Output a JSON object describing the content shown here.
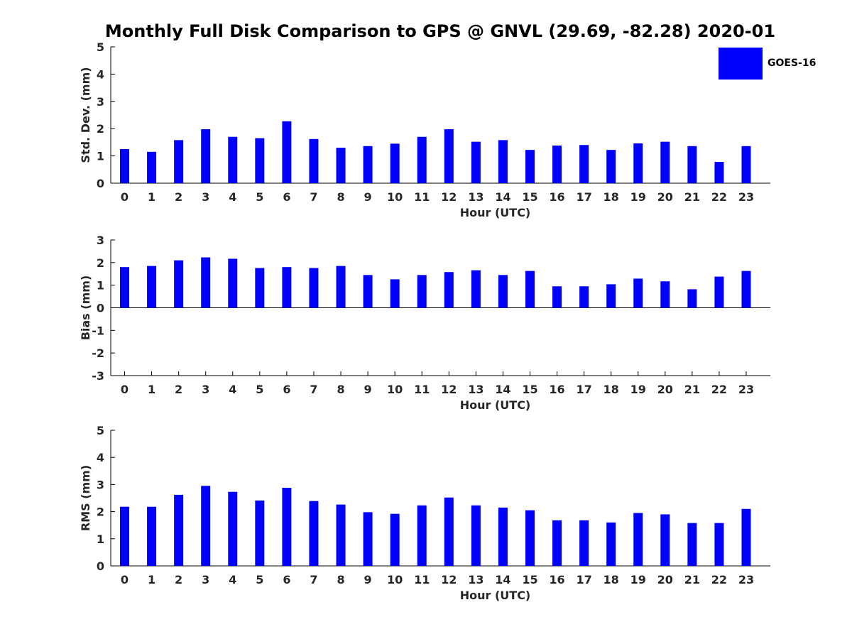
{
  "figure": {
    "title": "Monthly Full Disk Comparison to GPS @ GNVL (29.69, -82.28) 2020-01",
    "legend": [
      {
        "label": "GOES-16",
        "color": "#0000ff"
      }
    ],
    "bar_color": "#0000ff"
  },
  "chart_data": [
    {
      "type": "bar",
      "xlabel": "Hour (UTC)",
      "ylabel": "Std. Dev. (mm)",
      "ylim": [
        0,
        5
      ],
      "yticks": [
        0,
        1,
        2,
        3,
        4,
        5
      ],
      "categories": [
        "0",
        "1",
        "2",
        "3",
        "4",
        "5",
        "6",
        "7",
        "8",
        "9",
        "10",
        "11",
        "12",
        "13",
        "14",
        "15",
        "16",
        "17",
        "18",
        "19",
        "20",
        "21",
        "22",
        "23"
      ],
      "series": [
        {
          "name": "GOES-16",
          "values": [
            1.25,
            1.15,
            1.58,
            1.98,
            1.7,
            1.65,
            2.27,
            1.62,
            1.3,
            1.36,
            1.45,
            1.7,
            1.98,
            1.52,
            1.58,
            1.22,
            1.38,
            1.4,
            1.22,
            1.46,
            1.52,
            1.36,
            0.78,
            1.36
          ]
        }
      ],
      "grid": false,
      "legend_position": "top-right"
    },
    {
      "type": "bar",
      "xlabel": "Hour (UTC)",
      "ylabel": "Bias (mm)",
      "ylim": [
        -3,
        3
      ],
      "yticks": [
        -3,
        -2,
        -1,
        0,
        1,
        2,
        3
      ],
      "categories": [
        "0",
        "1",
        "2",
        "3",
        "4",
        "5",
        "6",
        "7",
        "8",
        "9",
        "10",
        "11",
        "12",
        "13",
        "14",
        "15",
        "16",
        "17",
        "18",
        "19",
        "20",
        "21",
        "22",
        "23"
      ],
      "series": [
        {
          "name": "GOES-16",
          "values": [
            1.8,
            1.85,
            2.1,
            2.23,
            2.17,
            1.76,
            1.8,
            1.76,
            1.85,
            1.45,
            1.26,
            1.45,
            1.58,
            1.66,
            1.45,
            1.63,
            0.95,
            0.95,
            1.04,
            1.29,
            1.17,
            0.82,
            1.38,
            1.63
          ]
        }
      ],
      "grid": false
    },
    {
      "type": "bar",
      "xlabel": "Hour (UTC)",
      "ylabel": "RMS (mm)",
      "ylim": [
        0,
        5
      ],
      "yticks": [
        0,
        1,
        2,
        3,
        4,
        5
      ],
      "categories": [
        "0",
        "1",
        "2",
        "3",
        "4",
        "5",
        "6",
        "7",
        "8",
        "9",
        "10",
        "11",
        "12",
        "13",
        "14",
        "15",
        "16",
        "17",
        "18",
        "19",
        "20",
        "21",
        "22",
        "23"
      ],
      "series": [
        {
          "name": "GOES-16",
          "values": [
            2.18,
            2.18,
            2.62,
            2.95,
            2.73,
            2.41,
            2.88,
            2.39,
            2.26,
            1.98,
            1.92,
            2.23,
            2.52,
            2.23,
            2.15,
            2.05,
            1.68,
            1.68,
            1.6,
            1.95,
            1.9,
            1.58,
            1.58,
            2.1
          ]
        }
      ],
      "grid": false
    }
  ]
}
